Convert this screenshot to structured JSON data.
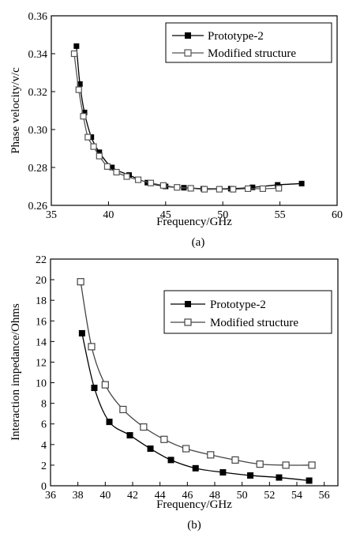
{
  "chart_data": [
    {
      "type": "line",
      "xlabel": "Frequency/GHz",
      "ylabel": "Phase velocity/v/c",
      "caption": "(a)",
      "xlim": [
        35,
        60
      ],
      "ylim": [
        0.26,
        0.36
      ],
      "x_ticks": [
        35,
        40,
        45,
        50,
        55,
        60
      ],
      "x_tick_labels": [
        "35",
        "40",
        "45",
        "50",
        "55",
        "60"
      ],
      "y_ticks": [
        0.26,
        0.28,
        0.3,
        0.32,
        0.34,
        0.36
      ],
      "y_tick_labels": [
        "0.26",
        "0.28",
        "0.30",
        "0.32",
        "0.34",
        "0.36"
      ],
      "legend_position": "top-right",
      "grid": false,
      "series": [
        {
          "name": "Prototype-2",
          "marker": "filled-square",
          "color": "#000000",
          "x": [
            37.2,
            37.5,
            37.9,
            38.5,
            39.2,
            40.3,
            41.8,
            43.4,
            45.0,
            46.6,
            48.3,
            50.7,
            52.6,
            54.8,
            56.9
          ],
          "y": [
            0.344,
            0.324,
            0.309,
            0.296,
            0.288,
            0.28,
            0.276,
            0.272,
            0.27,
            0.2693,
            0.2688,
            0.2688,
            0.2695,
            0.2708,
            0.2715
          ]
        },
        {
          "name": "Modified structure",
          "marker": "open-square",
          "color": "#555555",
          "x": [
            37.0,
            37.4,
            37.8,
            38.2,
            38.7,
            39.2,
            39.9,
            40.7,
            41.6,
            42.6,
            43.7,
            44.8,
            46.0,
            47.2,
            48.4,
            49.7,
            50.9,
            52.2,
            53.5,
            54.9
          ],
          "y": [
            0.34,
            0.321,
            0.307,
            0.296,
            0.291,
            0.286,
            0.2805,
            0.2775,
            0.2752,
            0.2735,
            0.2718,
            0.2705,
            0.2695,
            0.269,
            0.2685,
            0.2685,
            0.2685,
            0.2688,
            0.2688,
            0.269
          ]
        }
      ]
    },
    {
      "type": "line",
      "xlabel": "Frequency/GHz",
      "ylabel": "Interaction impedance/Ohms",
      "caption": "(b)",
      "xlim": [
        36,
        57
      ],
      "ylim": [
        0,
        22
      ],
      "x_ticks": [
        36,
        38,
        40,
        42,
        44,
        46,
        48,
        50,
        52,
        54,
        56
      ],
      "x_tick_labels": [
        "36",
        "38",
        "40",
        "42",
        "44",
        "46",
        "48",
        "50",
        "52",
        "54",
        "56"
      ],
      "y_ticks": [
        0,
        2,
        4,
        6,
        8,
        10,
        12,
        14,
        16,
        18,
        20,
        22
      ],
      "y_tick_labels": [
        "0",
        "2",
        "4",
        "6",
        "8",
        "10",
        "12",
        "14",
        "16",
        "18",
        "20",
        "22"
      ],
      "legend_position": "top-right",
      "grid": false,
      "series": [
        {
          "name": "Prototype-2",
          "marker": "filled-square",
          "color": "#000000",
          "x": [
            38.3,
            39.2,
            40.3,
            41.8,
            43.3,
            44.8,
            46.6,
            48.6,
            50.6,
            52.7,
            54.9
          ],
          "y": [
            14.8,
            9.5,
            6.2,
            4.9,
            3.6,
            2.5,
            1.7,
            1.3,
            1.0,
            0.8,
            0.5
          ]
        },
        {
          "name": "Modified structure",
          "marker": "open-square",
          "color": "#444444",
          "x": [
            38.2,
            39.0,
            40.0,
            41.3,
            42.8,
            44.3,
            45.9,
            47.7,
            49.5,
            51.3,
            53.2,
            55.1
          ],
          "y": [
            19.8,
            13.5,
            9.8,
            7.4,
            5.7,
            4.5,
            3.6,
            3.0,
            2.5,
            2.1,
            2.0,
            2.0
          ]
        }
      ]
    }
  ]
}
